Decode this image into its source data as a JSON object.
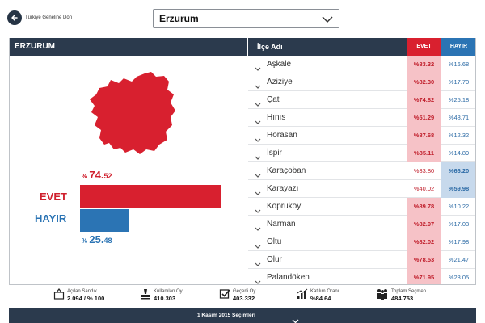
{
  "header": {
    "back_label": "Türkiye Geneline Dön",
    "province_select": "Erzurum"
  },
  "left": {
    "title": "ERZURUM",
    "evet_label": "EVET",
    "hayir_label": "HAYIR",
    "evet_pct_prefix": "%",
    "evet_pct_int": "74.",
    "evet_pct_dec": "52",
    "hayir_pct_prefix": "%",
    "hayir_pct_int": "25.",
    "hayir_pct_dec": "48",
    "evet_share": 74.52,
    "hayir_share": 25.48
  },
  "table": {
    "col_district": "İlçe Adı",
    "col_evet": "EVET",
    "col_hayir": "HAYIR",
    "rows": [
      {
        "name": "Aşkale",
        "evet": "%83.32",
        "hayir": "%16.68",
        "winner": "evet"
      },
      {
        "name": "Aziziye",
        "evet": "%82.30",
        "hayir": "%17.70",
        "winner": "evet"
      },
      {
        "name": "Çat",
        "evet": "%74.82",
        "hayir": "%25.18",
        "winner": "evet"
      },
      {
        "name": "Hınıs",
        "evet": "%51.29",
        "hayir": "%48.71",
        "winner": "evet"
      },
      {
        "name": "Horasan",
        "evet": "%87.68",
        "hayir": "%12.32",
        "winner": "evet"
      },
      {
        "name": "İspir",
        "evet": "%85.11",
        "hayir": "%14.89",
        "winner": "evet"
      },
      {
        "name": "Karaçoban",
        "evet": "%33.80",
        "hayir": "%66.20",
        "winner": "hayir"
      },
      {
        "name": "Karayazı",
        "evet": "%40.02",
        "hayir": "%59.98",
        "winner": "hayir"
      },
      {
        "name": "Köprüköy",
        "evet": "%89.78",
        "hayir": "%10.22",
        "winner": "evet"
      },
      {
        "name": "Narman",
        "evet": "%82.97",
        "hayir": "%17.03",
        "winner": "evet"
      },
      {
        "name": "Oltu",
        "evet": "%82.02",
        "hayir": "%17.98",
        "winner": "evet"
      },
      {
        "name": "Olur",
        "evet": "%78.53",
        "hayir": "%21.47",
        "winner": "evet"
      },
      {
        "name": "Palandöken",
        "evet": "%71.95",
        "hayir": "%28.05",
        "winner": "evet"
      }
    ]
  },
  "stats": {
    "opened_label": "Açılan Sandık",
    "opened_value": "2.094 / % 100",
    "used_label": "Kullanılan Oy",
    "used_value": "410.303",
    "valid_label": "Geçerli Oy",
    "valid_value": "403.332",
    "turnout_label": "Katılım Oranı",
    "turnout_value": "%84.64",
    "voters_label": "Toplam Seçmen",
    "voters_value": "484.753"
  },
  "footer": {
    "election_label": "1 Kasım 2015 Seçimleri"
  },
  "colors": {
    "evet": "#d8202f",
    "hayir": "#2b74b4",
    "header_bg": "#2b3a4d"
  }
}
